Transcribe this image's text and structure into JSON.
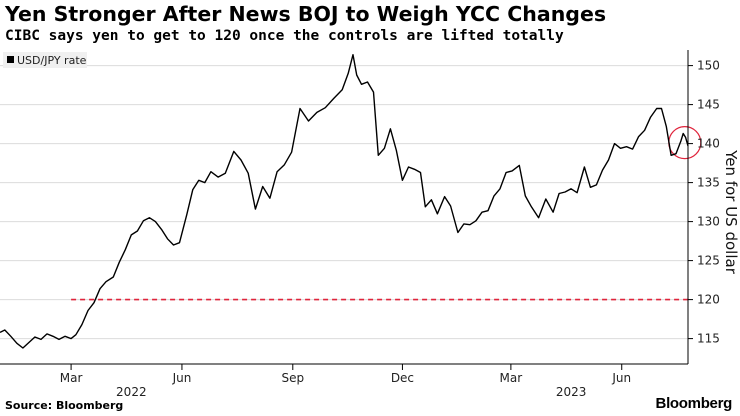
{
  "header": {
    "title": "Yen Stronger After News BOJ to Weigh YCC Changes",
    "subtitle": "CIBC says yen to get to 120 once the controls are lifted totally"
  },
  "footer": {
    "source": "Source: Bloomberg",
    "brand": "Bloomberg"
  },
  "colors": {
    "line": "#000000",
    "reference": "#e0243c",
    "highlight": "#e0243c",
    "grid": "#dcdcdc"
  },
  "chart_data": {
    "type": "line",
    "legend": {
      "label": "USD/JPY rate",
      "position": "top-left"
    },
    "ylabel": "Yen for US dollar",
    "y_axis_side": "right",
    "ylim": [
      112,
      152
    ],
    "yticks": [
      115,
      120,
      125,
      130,
      135,
      140,
      145,
      150
    ],
    "xlim": [
      "2022-01-01",
      "2023-07-26"
    ],
    "xticks": [
      {
        "label": "Mar",
        "date": "2022-03-01"
      },
      {
        "label": "Jun",
        "date": "2022-06-01"
      },
      {
        "label": "Sep",
        "date": "2022-09-01"
      },
      {
        "label": "Dec",
        "date": "2022-12-01"
      },
      {
        "label": "Mar",
        "date": "2023-03-01"
      },
      {
        "label": "Jun",
        "date": "2023-06-01"
      }
    ],
    "year_labels": [
      {
        "label": "2022",
        "date": "2022-04-20"
      },
      {
        "label": "2023",
        "date": "2023-04-20"
      }
    ],
    "reference_line": {
      "value": 120,
      "from": "2022-03-01",
      "style": "dashed"
    },
    "highlight": {
      "shape": "circle",
      "date": "2023-07-25",
      "value": 140
    },
    "grid": "horizontal",
    "series": [
      {
        "values": [
          {
            "x": "2022-01-01",
            "y": 115.8
          },
          {
            "x": "2022-01-05",
            "y": 116.1
          },
          {
            "x": "2022-01-10",
            "y": 115.3
          },
          {
            "x": "2022-01-15",
            "y": 114.4
          },
          {
            "x": "2022-01-20",
            "y": 113.8
          },
          {
            "x": "2022-01-25",
            "y": 114.5
          },
          {
            "x": "2022-01-30",
            "y": 115.2
          },
          {
            "x": "2022-02-04",
            "y": 114.9
          },
          {
            "x": "2022-02-09",
            "y": 115.6
          },
          {
            "x": "2022-02-14",
            "y": 115.3
          },
          {
            "x": "2022-02-19",
            "y": 114.9
          },
          {
            "x": "2022-02-24",
            "y": 115.3
          },
          {
            "x": "2022-03-01",
            "y": 115.0
          },
          {
            "x": "2022-03-05",
            "y": 115.5
          },
          {
            "x": "2022-03-10",
            "y": 116.8
          },
          {
            "x": "2022-03-15",
            "y": 118.6
          },
          {
            "x": "2022-03-20",
            "y": 119.6
          },
          {
            "x": "2022-03-25",
            "y": 121.4
          },
          {
            "x": "2022-03-30",
            "y": 122.3
          },
          {
            "x": "2022-04-05",
            "y": 122.9
          },
          {
            "x": "2022-04-10",
            "y": 124.8
          },
          {
            "x": "2022-04-15",
            "y": 126.4
          },
          {
            "x": "2022-04-20",
            "y": 128.3
          },
          {
            "x": "2022-04-25",
            "y": 128.8
          },
          {
            "x": "2022-04-30",
            "y": 130.1
          },
          {
            "x": "2022-05-05",
            "y": 130.5
          },
          {
            "x": "2022-05-10",
            "y": 130.0
          },
          {
            "x": "2022-05-15",
            "y": 129.0
          },
          {
            "x": "2022-05-20",
            "y": 127.8
          },
          {
            "x": "2022-05-25",
            "y": 127.0
          },
          {
            "x": "2022-05-30",
            "y": 127.3
          },
          {
            "x": "2022-06-05",
            "y": 130.9
          },
          {
            "x": "2022-06-10",
            "y": 134.1
          },
          {
            "x": "2022-06-15",
            "y": 135.3
          },
          {
            "x": "2022-06-20",
            "y": 135.0
          },
          {
            "x": "2022-06-25",
            "y": 136.4
          },
          {
            "x": "2022-07-01",
            "y": 135.7
          },
          {
            "x": "2022-07-07",
            "y": 136.2
          },
          {
            "x": "2022-07-14",
            "y": 139.0
          },
          {
            "x": "2022-07-20",
            "y": 137.9
          },
          {
            "x": "2022-07-26",
            "y": 136.2
          },
          {
            "x": "2022-08-01",
            "y": 131.6
          },
          {
            "x": "2022-08-07",
            "y": 134.5
          },
          {
            "x": "2022-08-13",
            "y": 133.0
          },
          {
            "x": "2022-08-19",
            "y": 136.4
          },
          {
            "x": "2022-08-25",
            "y": 137.3
          },
          {
            "x": "2022-08-31",
            "y": 138.9
          },
          {
            "x": "2022-09-07",
            "y": 144.5
          },
          {
            "x": "2022-09-14",
            "y": 142.9
          },
          {
            "x": "2022-09-21",
            "y": 144.0
          },
          {
            "x": "2022-09-28",
            "y": 144.6
          },
          {
            "x": "2022-10-05",
            "y": 145.8
          },
          {
            "x": "2022-10-12",
            "y": 146.9
          },
          {
            "x": "2022-10-17",
            "y": 149.0
          },
          {
            "x": "2022-10-21",
            "y": 151.4
          },
          {
            "x": "2022-10-24",
            "y": 148.8
          },
          {
            "x": "2022-10-28",
            "y": 147.6
          },
          {
            "x": "2022-11-02",
            "y": 147.9
          },
          {
            "x": "2022-11-07",
            "y": 146.6
          },
          {
            "x": "2022-11-11",
            "y": 138.5
          },
          {
            "x": "2022-11-16",
            "y": 139.4
          },
          {
            "x": "2022-11-21",
            "y": 141.9
          },
          {
            "x": "2022-11-26",
            "y": 139.1
          },
          {
            "x": "2022-12-01",
            "y": 135.3
          },
          {
            "x": "2022-12-06",
            "y": 137.0
          },
          {
            "x": "2022-12-11",
            "y": 136.7
          },
          {
            "x": "2022-12-16",
            "y": 136.3
          },
          {
            "x": "2022-12-20",
            "y": 131.9
          },
          {
            "x": "2022-12-25",
            "y": 132.8
          },
          {
            "x": "2022-12-30",
            "y": 131.0
          },
          {
            "x": "2023-01-05",
            "y": 133.2
          },
          {
            "x": "2023-01-10",
            "y": 132.0
          },
          {
            "x": "2023-01-16",
            "y": 128.6
          },
          {
            "x": "2023-01-21",
            "y": 129.7
          },
          {
            "x": "2023-01-26",
            "y": 129.6
          },
          {
            "x": "2023-01-31",
            "y": 130.1
          },
          {
            "x": "2023-02-05",
            "y": 131.2
          },
          {
            "x": "2023-02-10",
            "y": 131.4
          },
          {
            "x": "2023-02-15",
            "y": 133.3
          },
          {
            "x": "2023-02-20",
            "y": 134.2
          },
          {
            "x": "2023-02-25",
            "y": 136.3
          },
          {
            "x": "2023-03-02",
            "y": 136.5
          },
          {
            "x": "2023-03-08",
            "y": 137.2
          },
          {
            "x": "2023-03-13",
            "y": 133.3
          },
          {
            "x": "2023-03-18",
            "y": 131.9
          },
          {
            "x": "2023-03-24",
            "y": 130.5
          },
          {
            "x": "2023-03-30",
            "y": 132.9
          },
          {
            "x": "2023-04-05",
            "y": 131.2
          },
          {
            "x": "2023-04-10",
            "y": 133.6
          },
          {
            "x": "2023-04-15",
            "y": 133.8
          },
          {
            "x": "2023-04-20",
            "y": 134.2
          },
          {
            "x": "2023-04-25",
            "y": 133.7
          },
          {
            "x": "2023-05-01",
            "y": 137.0
          },
          {
            "x": "2023-05-06",
            "y": 134.4
          },
          {
            "x": "2023-05-11",
            "y": 134.7
          },
          {
            "x": "2023-05-16",
            "y": 136.6
          },
          {
            "x": "2023-05-21",
            "y": 137.9
          },
          {
            "x": "2023-05-26",
            "y": 140.0
          },
          {
            "x": "2023-05-31",
            "y": 139.4
          },
          {
            "x": "2023-06-05",
            "y": 139.6
          },
          {
            "x": "2023-06-10",
            "y": 139.3
          },
          {
            "x": "2023-06-15",
            "y": 140.9
          },
          {
            "x": "2023-06-20",
            "y": 141.7
          },
          {
            "x": "2023-06-25",
            "y": 143.4
          },
          {
            "x": "2023-06-30",
            "y": 144.5
          },
          {
            "x": "2023-07-04",
            "y": 144.5
          },
          {
            "x": "2023-07-08",
            "y": 142.2
          },
          {
            "x": "2023-07-12",
            "y": 138.5
          },
          {
            "x": "2023-07-16",
            "y": 138.7
          },
          {
            "x": "2023-07-20",
            "y": 140.3
          },
          {
            "x": "2023-07-22",
            "y": 141.3
          },
          {
            "x": "2023-07-24",
            "y": 140.8
          },
          {
            "x": "2023-07-26",
            "y": 139.7
          }
        ]
      }
    ]
  }
}
